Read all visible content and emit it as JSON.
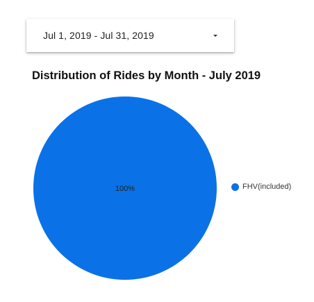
{
  "date_range": {
    "label": "Jul 1, 2019 - Jul 31, 2019",
    "icon": "dropdown-arrow-icon"
  },
  "colors": {
    "slice": "#0a72e6"
  },
  "chart_data": {
    "type": "pie",
    "title": "Distribution of Rides by Month - July 2019",
    "slices": [
      {
        "label": "FHV(included)",
        "value": 100,
        "percent_label": "100%",
        "color": "#0a72e6"
      }
    ],
    "legend": {
      "position": "right",
      "entries": [
        "FHV(included)"
      ]
    }
  }
}
